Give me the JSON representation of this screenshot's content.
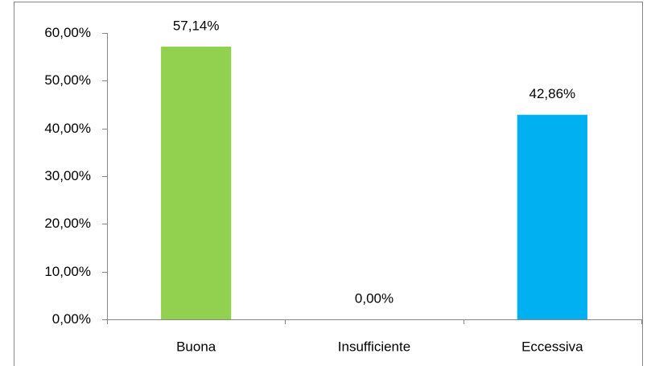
{
  "chart_data": {
    "type": "bar",
    "categories": [
      "Buona",
      "Insufficiente",
      "Eccessiva"
    ],
    "values": [
      57.14,
      0,
      42.86
    ],
    "value_labels": [
      "57,14%",
      "0,00%",
      "42,86%"
    ],
    "colors": [
      "#92d050",
      null,
      "#00b0f0"
    ],
    "ylim": [
      0,
      60
    ],
    "yticks": [
      {
        "value": 0,
        "label": "0,00%"
      },
      {
        "value": 10,
        "label": "10,00%"
      },
      {
        "value": 20,
        "label": "20,00%"
      },
      {
        "value": 30,
        "label": "30,00%"
      },
      {
        "value": 40,
        "label": "40,00%"
      },
      {
        "value": 50,
        "label": "50,00%"
      },
      {
        "value": 60,
        "label": "60,00%"
      }
    ],
    "grid": false
  }
}
